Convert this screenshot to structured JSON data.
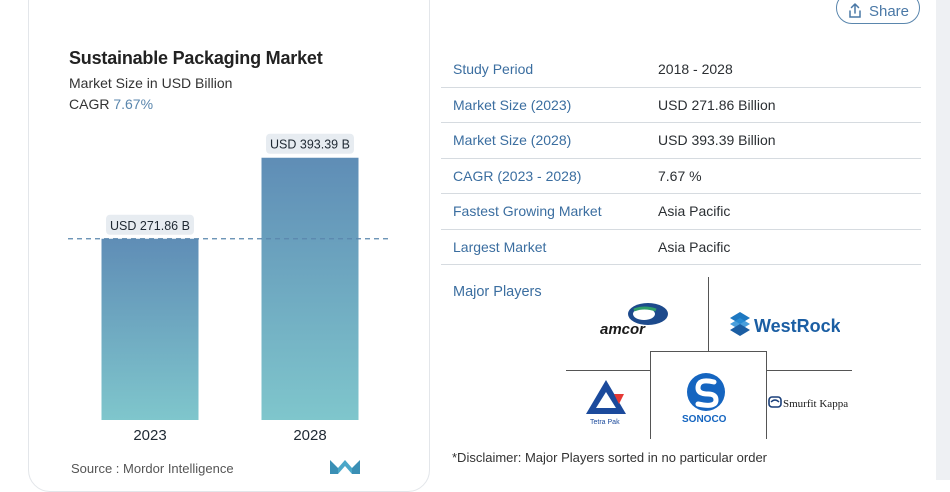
{
  "share": {
    "label": "Share"
  },
  "chart_data": {
    "type": "bar",
    "title": "Sustainable Packaging Market",
    "subtitle": "Market Size in USD Billion",
    "cagr_label": "CAGR",
    "cagr_value": "7.67%",
    "categories": [
      "2023",
      "2028"
    ],
    "values": [
      271.86,
      393.39
    ],
    "data_labels": [
      "USD 271.86 B",
      "USD 393.39 B"
    ],
    "ylim": [
      0,
      420
    ],
    "reference_line": 271.86,
    "bar_color_top": "#5f8db6",
    "bar_color_bottom": "#7fc6cc"
  },
  "source": "Source :  Mordor Intelligence",
  "facts": [
    {
      "key": "Study Period",
      "value": "2018 - 2028"
    },
    {
      "key": "Market Size (2023)",
      "value": "USD 271.86 Billion"
    },
    {
      "key": "Market Size (2028)",
      "value": "USD 393.39 Billion"
    },
    {
      "key": "CAGR (2023 - 2028)",
      "value": "7.67 %"
    },
    {
      "key": "Fastest Growing Market",
      "value": "Asia Pacific"
    },
    {
      "key": "Largest Market",
      "value": "Asia Pacific"
    }
  ],
  "players": {
    "label": "Major Players",
    "logos": [
      "amcor",
      "WestRock",
      "Tetra Pak",
      "SONOCO",
      "Smurfit Kappa"
    ]
  },
  "disclaimer": "*Disclaimer: Major Players sorted in no particular order",
  "colors": {
    "accent": "#3b6ea0",
    "border": "#d6dbe0"
  }
}
